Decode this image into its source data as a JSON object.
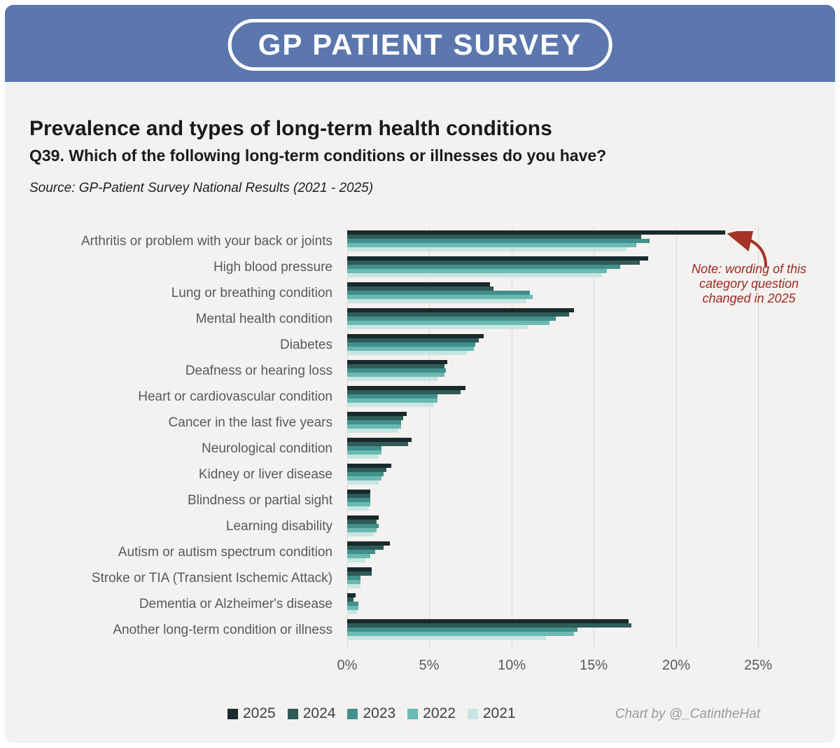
{
  "header": {
    "logo_text": "GP PATIENT SURVEY"
  },
  "title": "Prevalence and types of long-term health conditions",
  "subtitle": "Q39. Which of the following long-term conditions or illnesses do you have?",
  "source": "Source: GP-Patient Survey National Results (2021 - 2025)",
  "annotation": {
    "lines": [
      "Note: wording of this",
      "category question",
      "changed in 2025"
    ],
    "color": "#9c2a20",
    "points_to": "Arthritis 2025 bar"
  },
  "footer": {
    "credit": "Chart by @_CatintheHat"
  },
  "colors": {
    "header_bg": "#5b77ad",
    "page_bg": "#f4f2f0",
    "gridline": "#dad7d4",
    "label_gray": "#595959",
    "annotation_red": "#9c2a20"
  },
  "chart_data": {
    "type": "bar",
    "orientation": "horizontal",
    "xlim": [
      0,
      25
    ],
    "x_ticks": [
      "0%",
      "5%",
      "10%",
      "15%",
      "20%",
      "25%"
    ],
    "grid": true,
    "legend_position": "bottom",
    "categories": [
      "Arthritis or problem with your back or joints",
      "High blood pressure",
      "Lung or breathing condition",
      "Mental health condition",
      "Diabetes",
      "Deafness or hearing loss",
      "Heart or cardiovascular condition",
      "Cancer in the last five years",
      "Neurological condition",
      "Kidney or liver disease",
      "Blindness or partial sight",
      "Learning disability",
      "Autism or autism spectrum condition",
      "Stroke or TIA (Transient Ischemic Attack)",
      "Dementia or Alzheimer's disease",
      "Another long-term condition or illness"
    ],
    "series": [
      {
        "name": "2025",
        "color": "#182a2c",
        "values": [
          23.0,
          18.3,
          8.7,
          13.8,
          8.3,
          6.1,
          7.2,
          3.6,
          3.9,
          2.7,
          1.4,
          1.9,
          2.6,
          1.5,
          0.5,
          17.1
        ]
      },
      {
        "name": "2024",
        "color": "#2f5b58",
        "values": [
          17.9,
          17.8,
          8.9,
          13.5,
          8.0,
          5.9,
          6.9,
          3.4,
          3.7,
          2.4,
          1.4,
          1.8,
          2.2,
          1.5,
          0.4,
          17.3
        ]
      },
      {
        "name": "2023",
        "color": "#41908b",
        "values": [
          18.4,
          16.6,
          11.1,
          12.7,
          7.8,
          6.0,
          5.5,
          3.3,
          2.1,
          2.2,
          1.4,
          1.9,
          1.7,
          0.8,
          0.7,
          14.0
        ]
      },
      {
        "name": "2022",
        "color": "#6ab9b2",
        "values": [
          17.6,
          15.8,
          11.3,
          12.3,
          7.7,
          5.9,
          5.5,
          3.3,
          2.1,
          2.1,
          1.4,
          1.8,
          1.4,
          0.8,
          0.7,
          13.8
        ]
      },
      {
        "name": "2021",
        "color": "#c8e6e1",
        "values": [
          17.0,
          15.5,
          10.9,
          11.0,
          7.3,
          5.5,
          5.3,
          3.1,
          1.9,
          1.9,
          1.3,
          1.6,
          1.1,
          0.8,
          0.6,
          12.1
        ]
      }
    ]
  }
}
